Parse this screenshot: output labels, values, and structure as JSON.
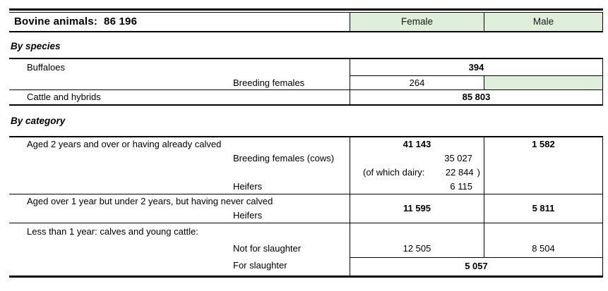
{
  "title": {
    "label": "Bovine animals:",
    "value": "86 196"
  },
  "columns": {
    "female": "Female",
    "male": "Male"
  },
  "species": {
    "heading": "By species",
    "buffaloes_label": "Buffaloes",
    "buffaloes_total": "394",
    "breeding_females_label": "Breeding females",
    "breeding_females_female": "264",
    "cattle_label": "Cattle and hybrids",
    "cattle_total": "85 803"
  },
  "category": {
    "heading": "By category",
    "aged2": {
      "label": "Aged 2 years and over or having already calved",
      "female_total": "41 143",
      "male_total": "1 582",
      "breeding_cows_label": "Breeding females (cows)",
      "breeding_cows_value": "35 027",
      "dairy_prefix": "(of which dairy:",
      "dairy_value": "22 844",
      "dairy_suffix": ")",
      "heifers_label": "Heifers",
      "heifers_value": "6 115"
    },
    "aged1": {
      "label": "Aged over 1 year but under 2 years, but having never calved",
      "heifers_label": "Heifers",
      "female_total": "11 595",
      "male_total": "5 811"
    },
    "under1": {
      "label": "Less than 1 year: calves and young cattle:",
      "not_slaughter_label": "Not for slaughter",
      "not_slaughter_female": "12 505",
      "not_slaughter_male": "8 504",
      "slaughter_label": "For slaughter",
      "slaughter_total": "5 057"
    }
  },
  "colors": {
    "header_green": "#dfeeda",
    "border": "#000000"
  }
}
